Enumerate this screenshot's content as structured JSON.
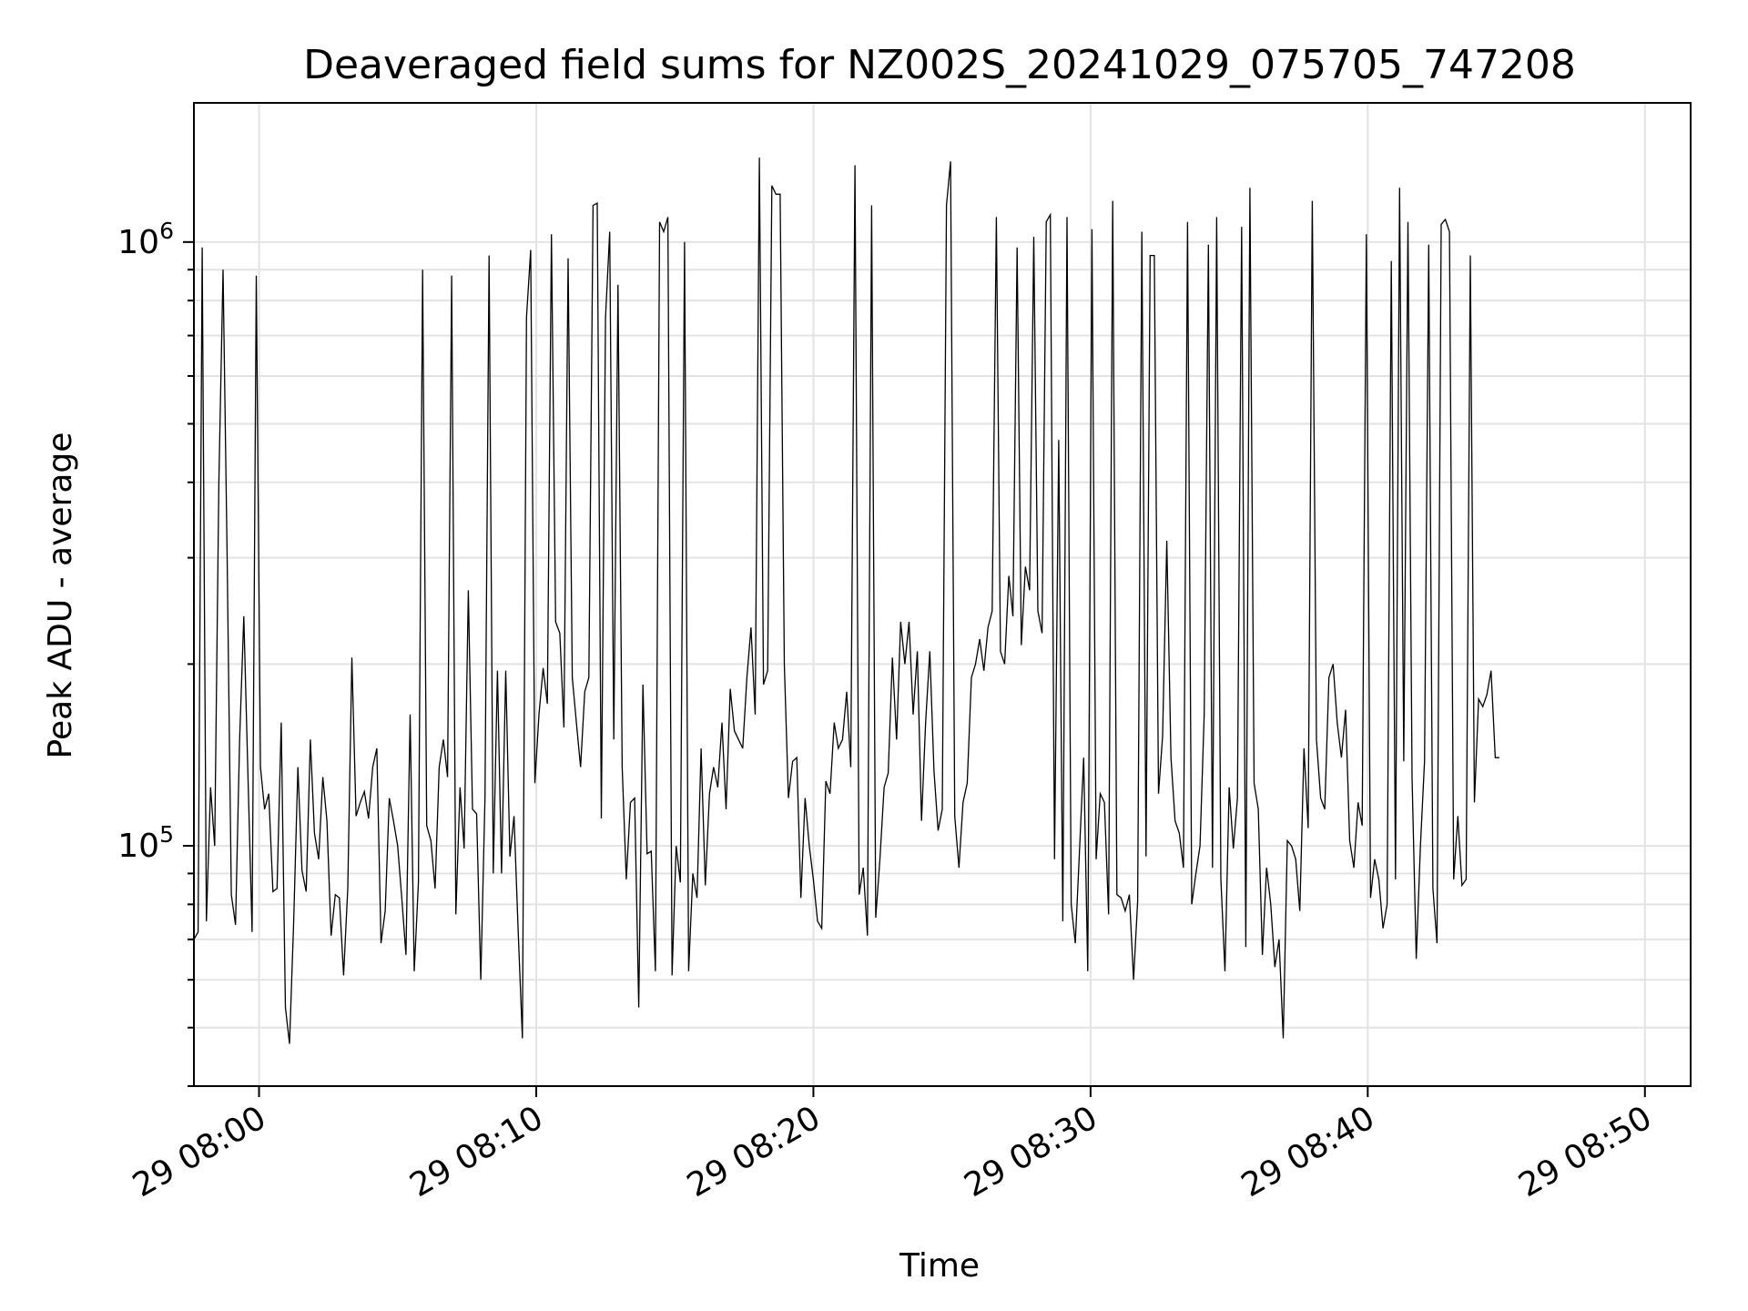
{
  "chart_data": {
    "type": "line",
    "title": "Deaveraged field sums for NZ002S_20241029_075705_747208",
    "xlabel": "Time",
    "ylabel": "Peak ADU - average",
    "yscale": "log",
    "ylim": [
      40000,
      1700000
    ],
    "grid": true,
    "x_range": [
      "2024-10-29T07:57:39",
      "2024-10-29T08:51:39"
    ],
    "x_ticks": [
      {
        "time": "2024-10-29T08:00:00",
        "label": "29 08:00"
      },
      {
        "time": "2024-10-29T08:10:00",
        "label": "29 08:10"
      },
      {
        "time": "2024-10-29T08:20:00",
        "label": "29 08:20"
      },
      {
        "time": "2024-10-29T08:30:00",
        "label": "29 08:30"
      },
      {
        "time": "2024-10-29T08:40:00",
        "label": "29 08:40"
      },
      {
        "time": "2024-10-29T08:50:00",
        "label": "29 08:50"
      }
    ],
    "y_ticks": [
      {
        "value": 100000,
        "base": "10",
        "exp": "5"
      },
      {
        "value": 1000000,
        "base": "10",
        "exp": "6"
      }
    ],
    "line_color": "#000000",
    "series": [
      {
        "t0": "2024-10-29T07:57:39",
        "interval_seconds": 9,
        "values": [
          70000,
          72000,
          980000,
          75000,
          125000,
          100000,
          400000,
          900000,
          300000,
          83000,
          74000,
          150000,
          240000,
          130000,
          72000,
          880000,
          135000,
          115000,
          122000,
          84000,
          85000,
          160000,
          54000,
          47000,
          75000,
          135000,
          91000,
          84000,
          150000,
          105000,
          95000,
          130000,
          110000,
          71000,
          83000,
          82000,
          61000,
          85000,
          205000,
          112000,
          118000,
          123000,
          111000,
          135000,
          145000,
          69000,
          78000,
          120000,
          110000,
          100000,
          82000,
          66000,
          165000,
          62000,
          87000,
          900000,
          108000,
          102000,
          85000,
          135000,
          150000,
          130000,
          880000,
          77000,
          125000,
          99000,
          265000,
          115000,
          113000,
          60000,
          120000,
          950000,
          90000,
          195000,
          90000,
          195000,
          96000,
          112000,
          72000,
          48000,
          750000,
          970000,
          127000,
          165000,
          197000,
          172000,
          1030000,
          235000,
          225000,
          157000,
          940000,
          190000,
          160000,
          135000,
          180000,
          190000,
          1150000,
          1160000,
          111000,
          750000,
          1040000,
          150000,
          850000,
          135000,
          88000,
          118000,
          120000,
          54000,
          185000,
          97000,
          98000,
          62000,
          1080000,
          1040000,
          1100000,
          61000,
          100000,
          87000,
          1000000,
          62000,
          90000,
          82000,
          145000,
          86000,
          122000,
          135000,
          125000,
          160000,
          115000,
          182000,
          155000,
          150000,
          145000,
          190000,
          230000,
          165000,
          1380000,
          185000,
          195000,
          1240000,
          1200000,
          1200000,
          200000,
          120000,
          138000,
          140000,
          82000,
          120000,
          100000,
          88000,
          75000,
          73000,
          128000,
          122000,
          160000,
          145000,
          150000,
          180000,
          135000,
          1340000,
          83000,
          92000,
          71000,
          1150000,
          76000,
          95000,
          125000,
          132000,
          205000,
          150000,
          235000,
          200000,
          235000,
          165000,
          210000,
          110000,
          160000,
          210000,
          133000,
          106000,
          115000,
          1150000,
          1360000,
          112000,
          92000,
          118000,
          127000,
          190000,
          200000,
          220000,
          195000,
          230000,
          245000,
          1100000,
          210000,
          200000,
          280000,
          240000,
          980000,
          215000,
          290000,
          265000,
          1020000,
          245000,
          225000,
          1080000,
          1110000,
          95000,
          470000,
          75000,
          1100000,
          80000,
          69000,
          98000,
          140000,
          62000,
          1050000,
          95000,
          122000,
          118000,
          77000,
          1170000,
          83000,
          82000,
          78000,
          83000,
          60000,
          81000,
          1040000,
          96000,
          950000,
          950000,
          122000,
          152000,
          320000,
          140000,
          110000,
          105000,
          92000,
          1080000,
          80000,
          90000,
          100000,
          165000,
          990000,
          92000,
          1100000,
          88000,
          62000,
          125000,
          99000,
          120000,
          1060000,
          68000,
          1230000,
          127000,
          115000,
          66000,
          92000,
          80000,
          63000,
          70000,
          48000,
          102000,
          100000,
          95000,
          78000,
          145000,
          107000,
          1170000,
          150000,
          120000,
          115000,
          190000,
          200000,
          160000,
          140000,
          168000,
          102000,
          92000,
          118000,
          108000,
          1030000,
          82000,
          95000,
          88000,
          73000,
          80000,
          930000,
          88000,
          1230000,
          138000,
          1080000,
          130000,
          65000,
          100000,
          138000,
          990000,
          85000,
          69000,
          1070000,
          1090000,
          1040000,
          88000,
          112000,
          86000,
          88000,
          950000,
          118000,
          175000,
          170000,
          178000,
          195000,
          140000,
          140000
        ]
      }
    ]
  }
}
